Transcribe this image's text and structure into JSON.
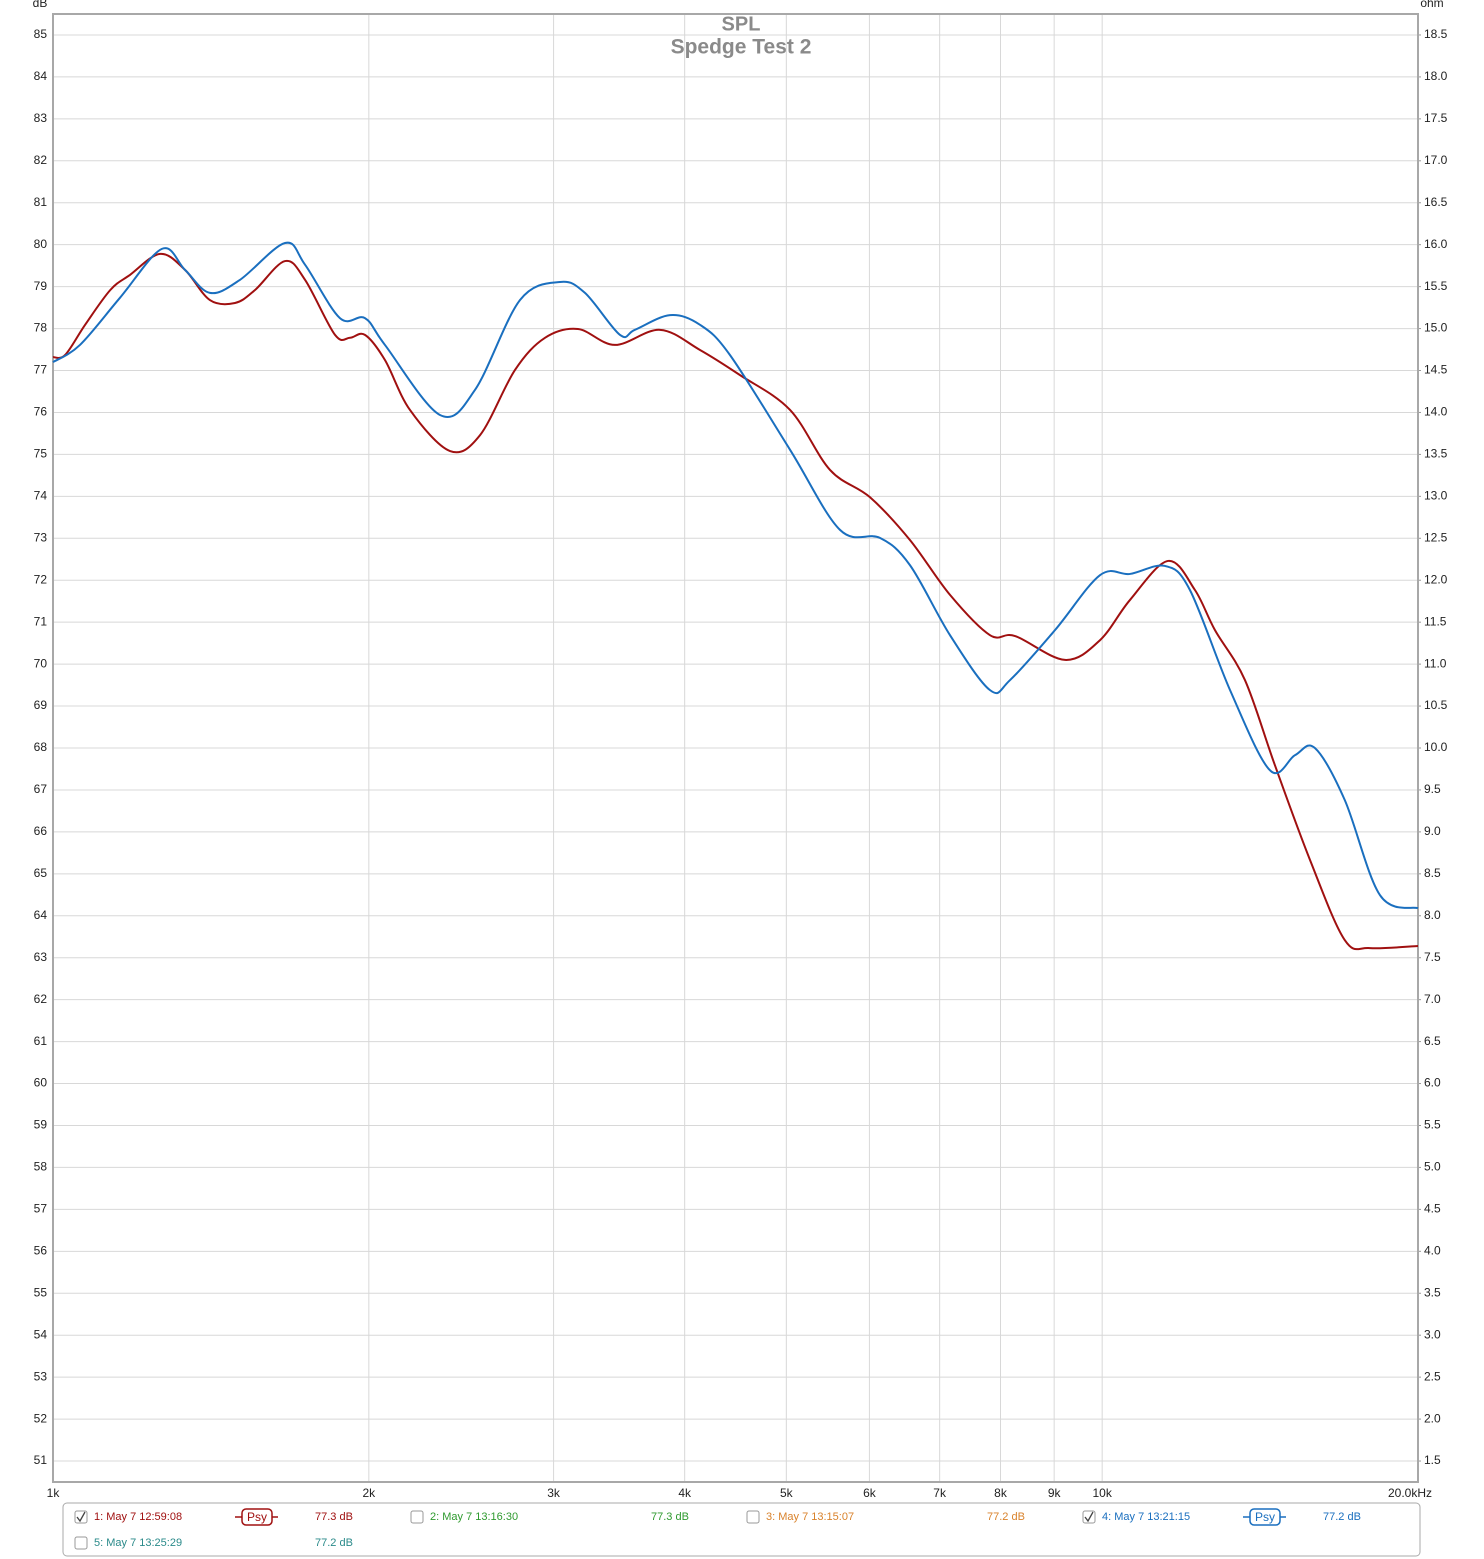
{
  "chart_data": {
    "type": "line",
    "title": "SPL",
    "subtitle": "Spedge Test 2",
    "ylabel": "dB",
    "y2label": "ohm",
    "xscale": "log",
    "xlim": [
      1000,
      20000
    ],
    "xticks": [
      {
        "value": 1000,
        "label": "1k"
      },
      {
        "value": 2000,
        "label": "2k"
      },
      {
        "value": 3000,
        "label": "3k"
      },
      {
        "value": 4000,
        "label": "4k"
      },
      {
        "value": 5000,
        "label": "5k"
      },
      {
        "value": 6000,
        "label": "6k"
      },
      {
        "value": 7000,
        "label": "7k"
      },
      {
        "value": 8000,
        "label": "8k"
      },
      {
        "value": 9000,
        "label": "9k"
      },
      {
        "value": 10000,
        "label": "10k"
      },
      {
        "value": 20000,
        "label": "20.0kHz"
      }
    ],
    "ylim": [
      50.5,
      85.5
    ],
    "yticks": [
      51,
      52,
      53,
      54,
      55,
      56,
      57,
      58,
      59,
      60,
      61,
      62,
      63,
      64,
      65,
      66,
      67,
      68,
      69,
      70,
      71,
      72,
      73,
      74,
      75,
      76,
      77,
      78,
      79,
      80,
      81,
      82,
      83,
      84,
      85
    ],
    "y2lim": [
      1.25,
      18.75
    ],
    "y2ticks": [
      1.5,
      {
        "value": 2,
        "label": "2.0"
      },
      2.5,
      {
        "value": 3,
        "label": "3.0"
      },
      3.5,
      {
        "value": 4,
        "label": "4.0"
      },
      4.5,
      {
        "value": 5,
        "label": "5.0"
      },
      5.5,
      {
        "value": 6,
        "label": "6.0"
      },
      6.5,
      {
        "value": 7,
        "label": "7.0"
      },
      7.5,
      {
        "value": 8,
        "label": "8.0"
      },
      8.5,
      {
        "value": 9,
        "label": "9.0"
      },
      9.5,
      {
        "value": 10,
        "label": "10.0"
      },
      10.5,
      {
        "value": 11,
        "label": "11.0"
      },
      11.5,
      {
        "value": 12,
        "label": "12.0"
      },
      12.5,
      {
        "value": 13,
        "label": "13.0"
      },
      13.5,
      {
        "value": 14,
        "label": "14.0"
      },
      14.5,
      {
        "value": 15,
        "label": "15.0"
      },
      15.5,
      {
        "value": 16,
        "label": "16.0"
      },
      16.5,
      {
        "value": 17,
        "label": "17.0"
      },
      17.5,
      {
        "value": 18,
        "label": "18.0"
      },
      18.5
    ],
    "grid": true,
    "series": [
      {
        "name": "1: May 7 12:59:08",
        "color": "#a01010",
        "checked": true,
        "smoothing": "Psy",
        "level": "77.3 dB",
        "x": [
          1000,
          1027,
          1073,
          1134,
          1184,
          1265,
          1336,
          1411,
          1491,
          1558,
          1664,
          1739,
          1857,
          1919,
          1983,
          2072,
          2189,
          2390,
          2553,
          2756,
          2944,
          3165,
          3432,
          3789,
          4137,
          4517,
          5041,
          5503,
          6006,
          6558,
          7161,
          7818,
          8260,
          9216,
          9952,
          10630,
          11553,
          12256,
          12809,
          13680,
          14610,
          15780,
          17030,
          18000,
          20000
        ],
        "values": [
          77.32,
          77.37,
          78.09,
          78.92,
          79.28,
          79.78,
          79.4,
          78.68,
          78.61,
          78.92,
          79.61,
          79.16,
          77.85,
          77.78,
          77.85,
          77.25,
          76.06,
          75.08,
          75.46,
          77.01,
          77.78,
          77.99,
          77.61,
          77.97,
          77.49,
          76.89,
          76.06,
          74.63,
          73.98,
          72.96,
          71.65,
          70.69,
          70.67,
          70.1,
          70.57,
          71.53,
          72.46,
          71.77,
          70.81,
          69.62,
          67.59,
          65.33,
          63.42,
          63.23,
          63.28
        ]
      },
      {
        "name": "2: May 7 13:16:30",
        "color": "#2e9a2e",
        "checked": false,
        "level": "77.3 dB"
      },
      {
        "name": "3: May 7 13:15:07",
        "color": "#d9822b",
        "checked": false,
        "level": "77.2 dB"
      },
      {
        "name": "4: May 7 13:21:15",
        "color": "#1a6fbf",
        "checked": true,
        "smoothing": "Psy",
        "level": "77.2 dB",
        "x": [
          1000,
          1061,
          1158,
          1270,
          1336,
          1411,
          1507,
          1664,
          1739,
          1877,
          1983,
          2072,
          2338,
          2525,
          2787,
          3043,
          3214,
          3470,
          3586,
          3874,
          4137,
          4418,
          5041,
          5625,
          6140,
          6558,
          7161,
          7818,
          8170,
          9016,
          9952,
          10630,
          11478,
          12122,
          13240,
          14450,
          15270,
          15950,
          17030,
          18400,
          20000
        ],
        "values": [
          77.2,
          77.61,
          78.73,
          79.9,
          79.4,
          78.85,
          79.16,
          80.04,
          79.52,
          78.25,
          78.25,
          77.61,
          75.94,
          76.54,
          78.68,
          79.11,
          78.85,
          77.85,
          77.97,
          78.32,
          78.09,
          77.37,
          75.11,
          73.2,
          73.01,
          72.36,
          70.69,
          69.38,
          69.62,
          70.81,
          72.12,
          72.15,
          72.34,
          71.77,
          69.38,
          67.47,
          67.83,
          68.0,
          66.76,
          64.49,
          64.18
        ]
      },
      {
        "name": "5: May 7 13:25:29",
        "color": "#2a8a8a",
        "checked": false,
        "level": "77.2 dB"
      }
    ]
  }
}
